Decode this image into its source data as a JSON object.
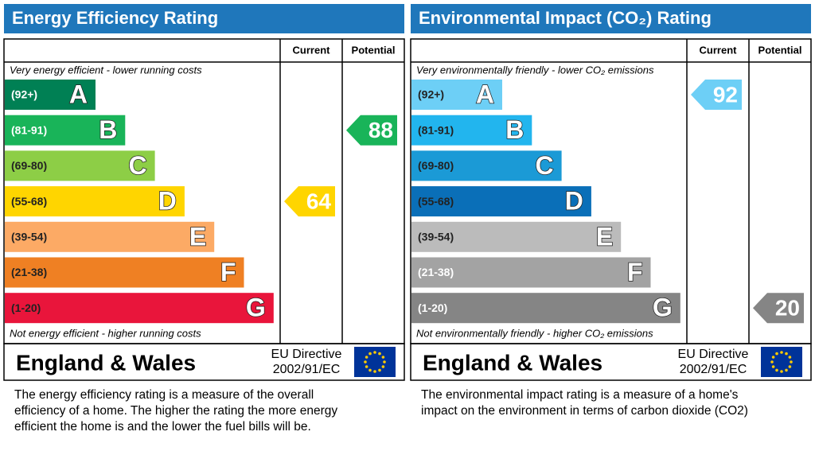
{
  "panels": [
    {
      "title": "Energy Efficiency Rating",
      "header": {
        "current": "Current",
        "potential": "Potential"
      },
      "top_note": "Very energy efficient - lower running costs",
      "bottom_note": "Not energy efficient - higher running costs",
      "bands": [
        {
          "range": "(92+)",
          "letter": "A",
          "color": "#008054",
          "text_color": "#ffffff"
        },
        {
          "range": "(81-91)",
          "letter": "B",
          "color": "#19b459",
          "text_color": "#ffffff"
        },
        {
          "range": "(69-80)",
          "letter": "C",
          "color": "#8dce46",
          "text_color": "#222222"
        },
        {
          "range": "(55-68)",
          "letter": "D",
          "color": "#ffd500",
          "text_color": "#222222"
        },
        {
          "range": "(39-54)",
          "letter": "E",
          "color": "#fcaa65",
          "text_color": "#222222"
        },
        {
          "range": "(21-38)",
          "letter": "F",
          "color": "#ef8023",
          "text_color": "#222222"
        },
        {
          "range": "(1-20)",
          "letter": "G",
          "color": "#e9153b",
          "text_color": "#222222"
        }
      ],
      "current": 64,
      "potential": 88,
      "footer": {
        "region": "England & Wales",
        "directive": [
          "EU Directive",
          "2002/91/EC"
        ]
      },
      "description": [
        "The energy efficiency rating is a measure of the overall",
        "efficiency of a home.  The higher the rating the more energy",
        "efficient the home is and the lower the fuel bills will be."
      ]
    },
    {
      "title": "Environmental Impact (CO₂) Rating",
      "header": {
        "current": "Current",
        "potential": "Potential"
      },
      "top_note": "Very environmentally friendly - lower CO₂ emissions",
      "bottom_note": "Not environmentally friendly - higher CO₂ emissions",
      "bands": [
        {
          "range": "(92+)",
          "letter": "A",
          "color": "#6dcff6",
          "text_color": "#222222"
        },
        {
          "range": "(81-91)",
          "letter": "B",
          "color": "#22b5ee",
          "text_color": "#222222"
        },
        {
          "range": "(69-80)",
          "letter": "C",
          "color": "#1b9ad6",
          "text_color": "#222222"
        },
        {
          "range": "(55-68)",
          "letter": "D",
          "color": "#0a6fb8",
          "text_color": "#222222"
        },
        {
          "range": "(39-54)",
          "letter": "E",
          "color": "#bbbbbb",
          "text_color": "#222222"
        },
        {
          "range": "(21-38)",
          "letter": "F",
          "color": "#a3a3a3",
          "text_color": "#ffffff"
        },
        {
          "range": "(1-20)",
          "letter": "G",
          "color": "#858585",
          "text_color": "#ffffff"
        }
      ],
      "current": 92,
      "potential": 20,
      "footer": {
        "region": "England & Wales",
        "directive": [
          "EU Directive",
          "2002/91/EC"
        ]
      },
      "description": [
        "The environmental impact rating is a measure of a home's",
        "impact on the environment in terms of carbon dioxide (CO2)"
      ]
    }
  ]
}
